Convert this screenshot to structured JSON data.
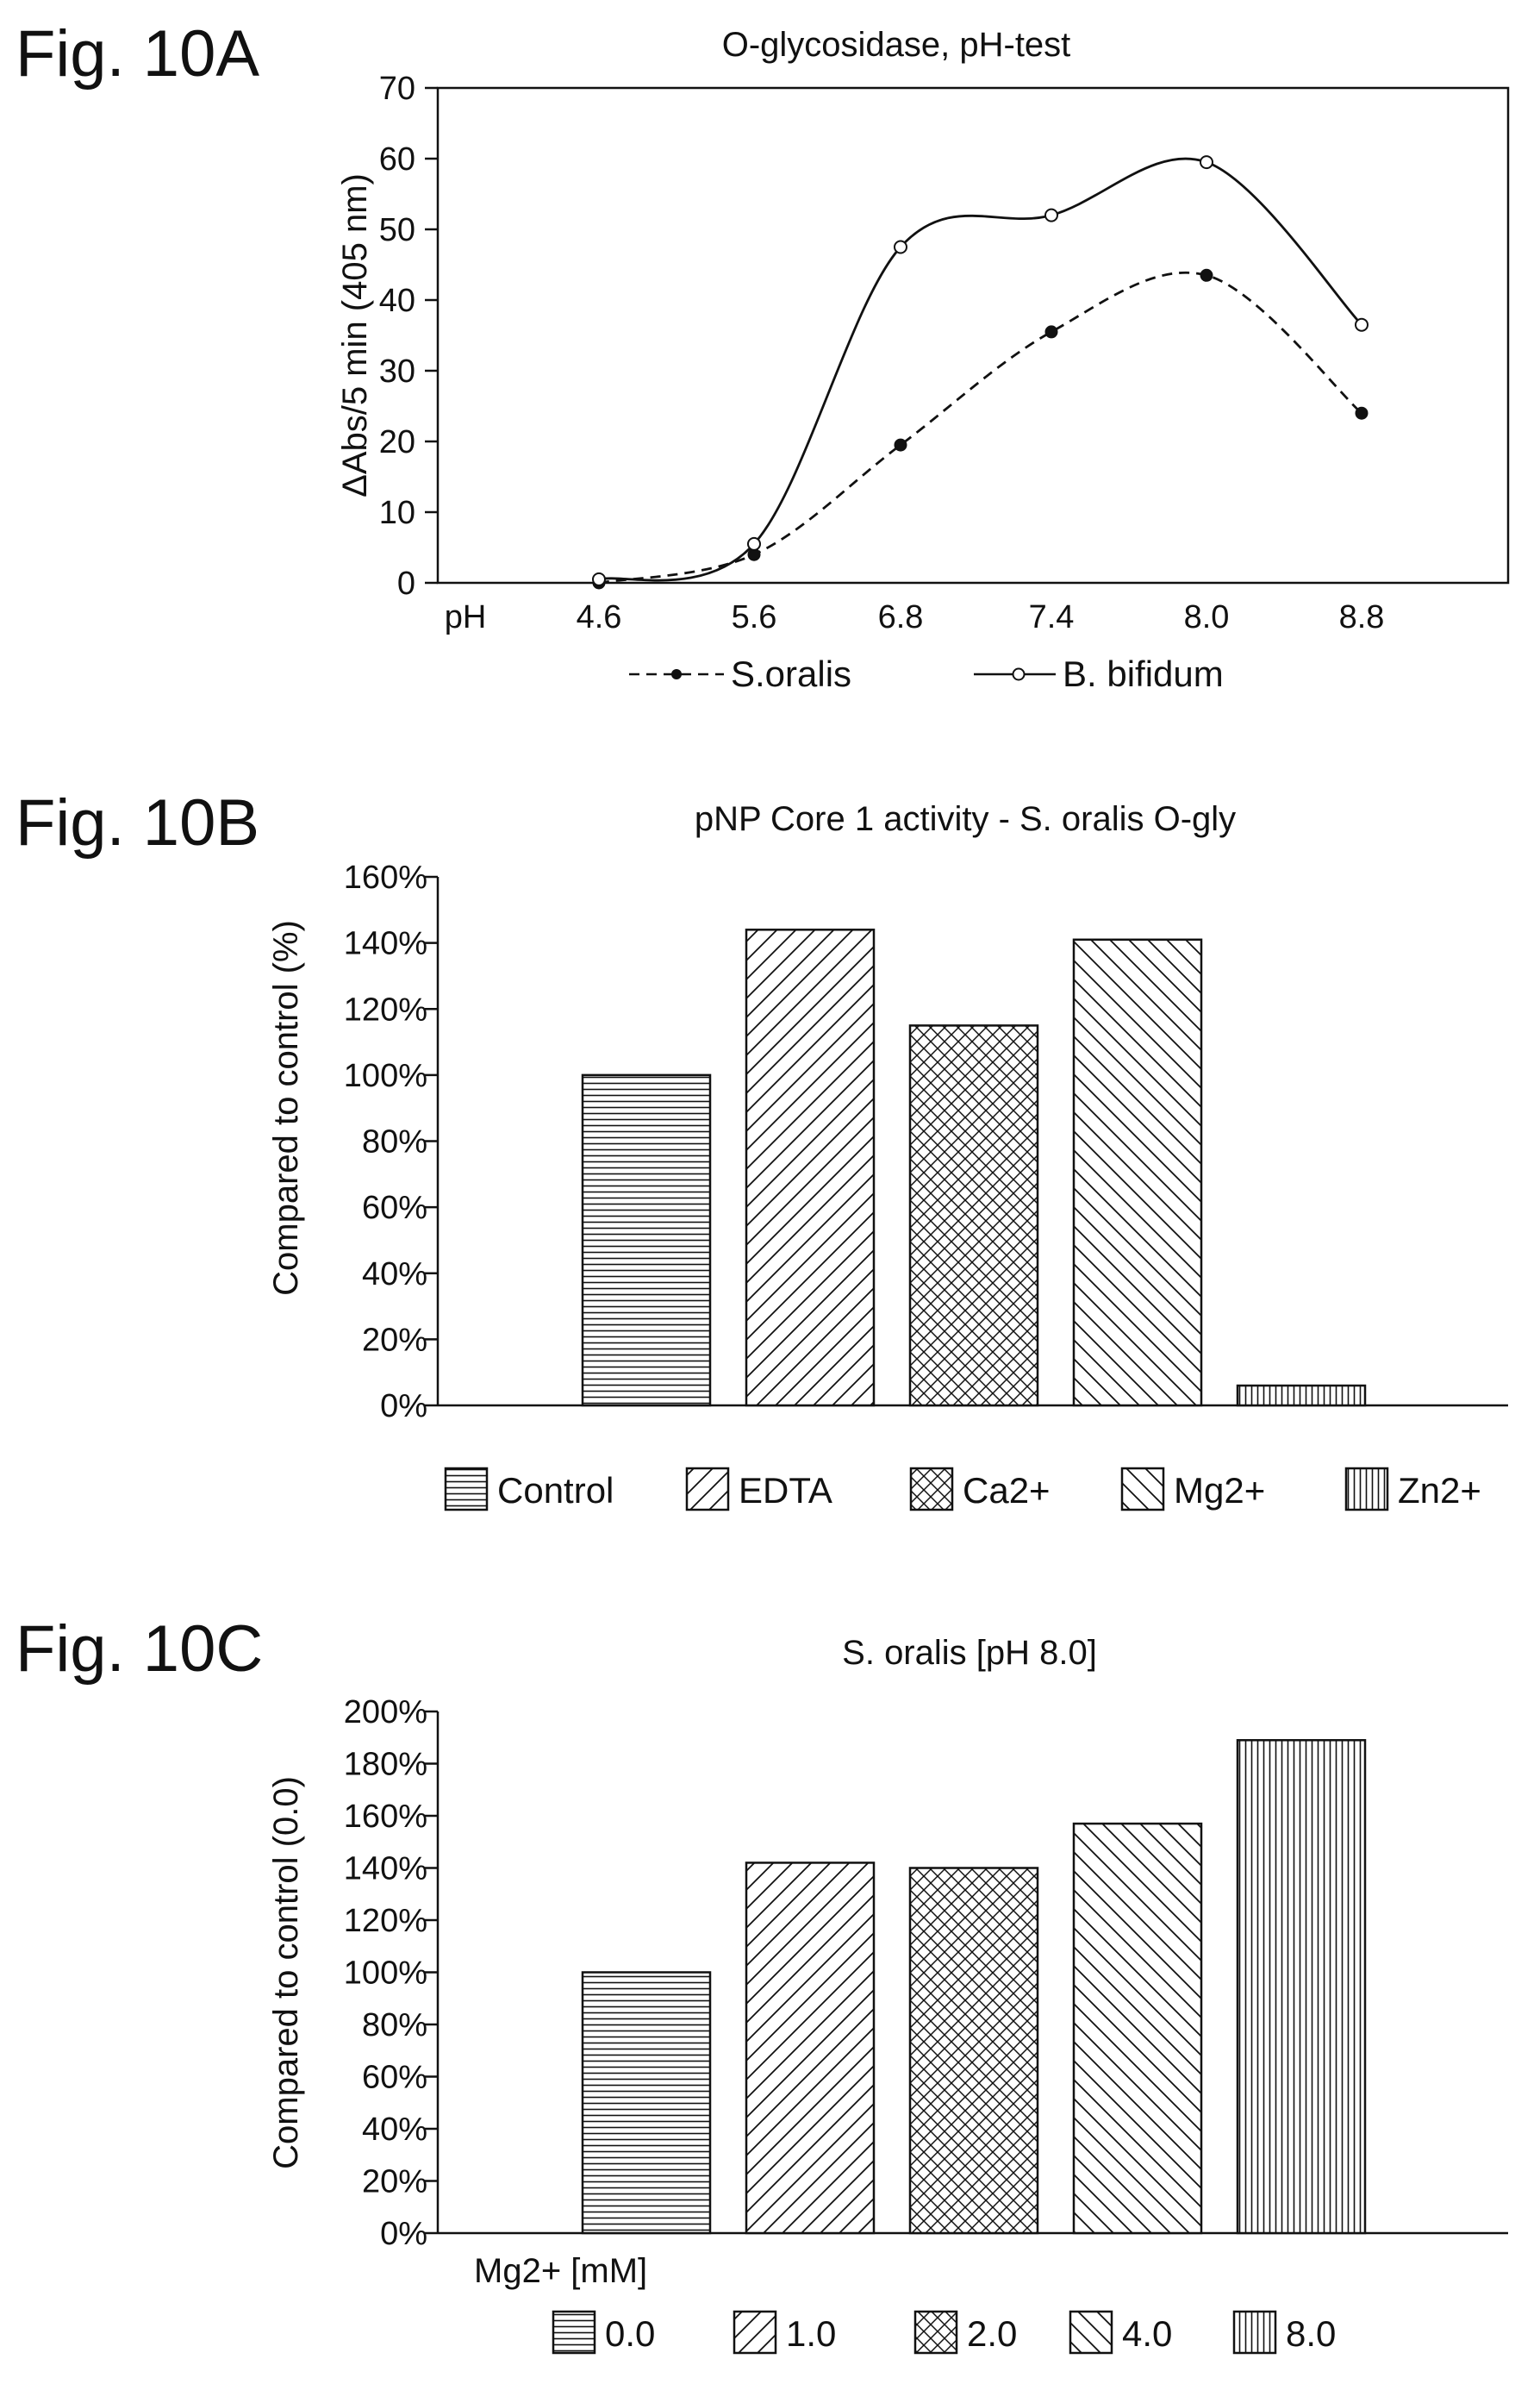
{
  "chart_data": [
    {
      "type": "line",
      "fig_label": "Fig. 10A",
      "title": "O-glycosidase, pH-test",
      "ylabel": "ΔAbs/5 min (405 nm)",
      "x_axis_name": "pH",
      "x": [
        "4.6",
        "5.6",
        "6.8",
        "7.4",
        "8.0",
        "8.8"
      ],
      "ylim": [
        0,
        70
      ],
      "yticks": [
        0,
        10,
        20,
        30,
        40,
        50,
        60,
        70
      ],
      "series": [
        {
          "name": "S.oralis",
          "style": "dashed",
          "marker": "filled",
          "values": [
            0,
            4,
            19.5,
            35.5,
            43.5,
            24
          ]
        },
        {
          "name": "B. bifidum",
          "style": "solid",
          "marker": "open",
          "values": [
            0.5,
            5.5,
            47.5,
            52,
            59.5,
            36.5
          ]
        }
      ],
      "series_note": "",
      "legend_position": "bottom"
    },
    {
      "type": "bar",
      "fig_label": "Fig. 10B",
      "title": "pNP Core 1 activity - S. oralis O-gly",
      "ylabel": "Compared to control (%)",
      "categories": [
        "Control",
        "EDTA",
        "Ca2+",
        "Mg2+",
        "Zn2+"
      ],
      "values": [
        100,
        144,
        115,
        141,
        6
      ],
      "ylim": [
        0,
        160
      ],
      "yticks": [
        "0%",
        "20%",
        "40%",
        "60%",
        "80%",
        "100%",
        "120%",
        "140%",
        "160%"
      ],
      "legend_position": "bottom"
    },
    {
      "type": "bar",
      "fig_label": "Fig. 10C",
      "title": "S. oralis [pH 8.0]",
      "ylabel": "Compared to control (0.0)",
      "xlabel": "Mg2+ [mM]",
      "categories": [
        "0.0",
        "1.0",
        "2.0",
        "4.0",
        "8.0"
      ],
      "values": [
        100,
        142,
        140,
        157,
        189
      ],
      "ylim": [
        0,
        200
      ],
      "yticks": [
        "0%",
        "20%",
        "40%",
        "60%",
        "80%",
        "100%",
        "120%",
        "140%",
        "160%",
        "180%",
        "200%"
      ],
      "legend_position": "bottom"
    }
  ]
}
